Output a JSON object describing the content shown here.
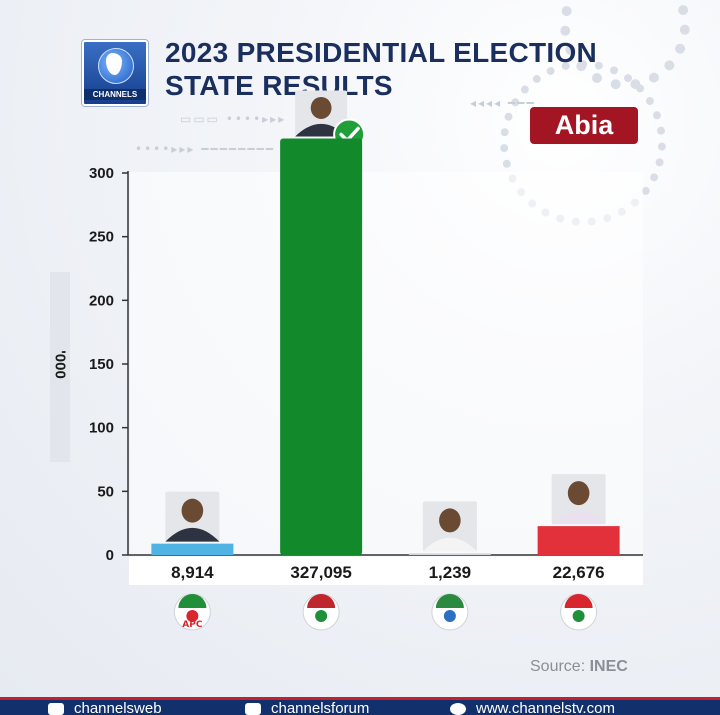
{
  "header": {
    "logo_text": "CHANNELS",
    "title_line1": "2023 PRESIDENTIAL ELECTION",
    "title_line2": "STATE RESULTS",
    "state": "Abia"
  },
  "chart_data": {
    "type": "bar",
    "ylabel": "'000",
    "ylim": [
      0,
      300
    ],
    "yticks": [
      0,
      50,
      100,
      150,
      200,
      250,
      300
    ],
    "grid": false,
    "categories": [
      "APC",
      "LP",
      "NNPP",
      "PDP"
    ],
    "values": [
      8914,
      327095,
      1239,
      22676
    ],
    "value_labels": [
      "8,914",
      "327,095",
      "1,239",
      "22,676"
    ],
    "bar_colors": [
      "#4fb4e3",
      "#128a2c",
      "#cfd3d9",
      "#e2313b"
    ],
    "winner_index": 1
  },
  "source": {
    "label": "Source:",
    "name": "INEC"
  },
  "footer": {
    "items": [
      "channelsweb",
      "channelsforum",
      "www.channelstv.com"
    ]
  }
}
